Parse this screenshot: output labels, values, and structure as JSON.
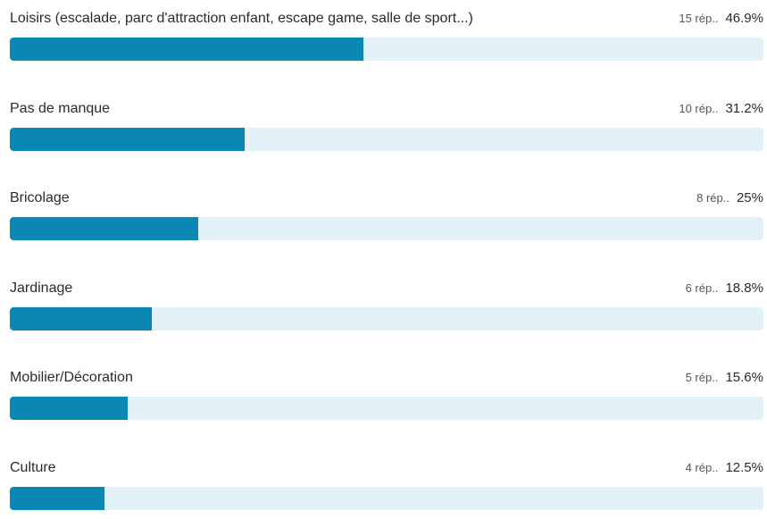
{
  "colors": {
    "bar_fill": "#0a87b3",
    "bar_track": "#e3f2f8"
  },
  "chart_data": {
    "type": "bar",
    "orientation": "horizontal",
    "xlim": [
      0,
      100
    ],
    "categories": [
      "Loisirs (escalade, parc d'attraction enfant, escape game, salle de sport...)",
      "Pas de manque",
      "Bricolage",
      "Jardinage",
      "Mobilier/Décoration",
      "Culture"
    ],
    "counts": [
      "15 rép..",
      "10 rép..",
      "8 rép..",
      "6 rép..",
      "5 rép..",
      "4 rép.."
    ],
    "percent_labels": [
      "46.9%",
      "31.2%",
      "25%",
      "18.8%",
      "15.6%",
      "12.5%"
    ],
    "values": [
      46.9,
      31.2,
      25,
      18.8,
      15.6,
      12.5
    ]
  }
}
